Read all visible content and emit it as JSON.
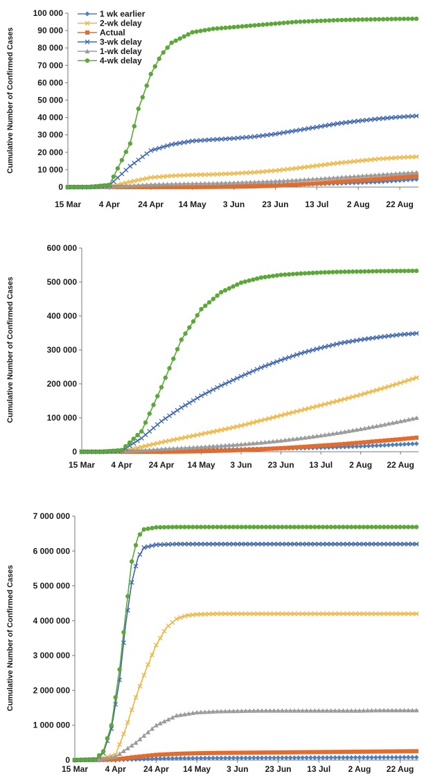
{
  "chart_data": [
    {
      "type": "line",
      "ylabel": "Cumulative Number of Confirmed Cases",
      "ylim": [
        0,
        100000
      ],
      "yticks": [
        0,
        10000,
        20000,
        30000,
        40000,
        50000,
        60000,
        70000,
        80000,
        90000,
        100000
      ],
      "ytick_labels": [
        "0",
        "10 000",
        "20 000",
        "30 000",
        "40 000",
        "50 000",
        "60 000",
        "70 000",
        "80 000",
        "90 000",
        "100 000"
      ],
      "x_tick_labels": [
        "15 Mar",
        "4 Apr",
        "24 Apr",
        "14 May",
        "3 Jun",
        "23 Jun",
        "13 Jul",
        "2 Aug",
        "22 Aug"
      ],
      "legend_placement": "top-left",
      "series": [
        {
          "name": "1 wk earlier",
          "color": "#4a7fc1",
          "marker": "diamond",
          "x": [
            "15 Mar",
            "25 Mar",
            "4 Apr",
            "14 Apr",
            "24 Apr",
            "4 May",
            "14 May",
            "24 May",
            "3 Jun",
            "13 Jun",
            "23 Jun",
            "3 Jul",
            "13 Jul",
            "23 Jul",
            "2 Aug",
            "12 Aug",
            "22 Aug",
            "31 Aug"
          ],
          "values": [
            0,
            0,
            50,
            300,
            600,
            800,
            900,
            1000,
            1100,
            1200,
            1300,
            1500,
            1800,
            2100,
            2500,
            3000,
            3800,
            4500
          ]
        },
        {
          "name": "2-wk delay",
          "color": "#f0b43c",
          "marker": "x",
          "x": [
            "15 Mar",
            "25 Mar",
            "4 Apr",
            "14 Apr",
            "24 Apr",
            "4 May",
            "14 May",
            "24 May",
            "3 Jun",
            "13 Jun",
            "23 Jun",
            "3 Jul",
            "13 Jul",
            "23 Jul",
            "2 Aug",
            "12 Aug",
            "22 Aug",
            "31 Aug"
          ],
          "values": [
            0,
            0,
            300,
            3000,
            5500,
            6500,
            7000,
            7300,
            7800,
            8500,
            9500,
            10800,
            12300,
            13800,
            15000,
            16200,
            17000,
            17500
          ]
        },
        {
          "name": "Actual",
          "color": "#e36c2c",
          "marker": "square",
          "x": [
            "15 Mar",
            "25 Mar",
            "4 Apr",
            "14 Apr",
            "24 Apr",
            "4 May",
            "14 May",
            "24 May",
            "3 Jun",
            "13 Jun",
            "23 Jun",
            "3 Jul",
            "13 Jul",
            "23 Jul",
            "2 Aug",
            "12 Aug",
            "22 Aug",
            "31 Aug"
          ],
          "values": [
            0,
            0,
            0,
            0,
            0,
            0,
            0,
            100,
            200,
            400,
            800,
            1400,
            2100,
            3000,
            3800,
            4600,
            5500,
            6200
          ]
        },
        {
          "name": "3-wk delay",
          "color": "#3a64b0",
          "marker": "x",
          "x": [
            "15 Mar",
            "25 Mar",
            "4 Apr",
            "14 Apr",
            "24 Apr",
            "4 May",
            "14 May",
            "24 May",
            "3 Jun",
            "13 Jun",
            "23 Jun",
            "3 Jul",
            "13 Jul",
            "23 Jul",
            "2 Aug",
            "12 Aug",
            "22 Aug",
            "31 Aug"
          ],
          "values": [
            0,
            0,
            1000,
            12000,
            21000,
            24500,
            26500,
            27300,
            28000,
            29000,
            30500,
            32500,
            34500,
            36500,
            38000,
            39300,
            40300,
            41000
          ]
        },
        {
          "name": "1-wk delay",
          "color": "#9b9b9b",
          "marker": "triangle",
          "x": [
            "15 Mar",
            "25 Mar",
            "4 Apr",
            "14 Apr",
            "24 Apr",
            "4 May",
            "14 May",
            "24 May",
            "3 Jun",
            "13 Jun",
            "23 Jun",
            "3 Jul",
            "13 Jul",
            "23 Jul",
            "2 Aug",
            "12 Aug",
            "22 Aug",
            "31 Aug"
          ],
          "values": [
            0,
            0,
            100,
            900,
            1500,
            1800,
            2000,
            2200,
            2500,
            2900,
            3400,
            4000,
            4700,
            5500,
            6300,
            7100,
            7900,
            8500
          ]
        },
        {
          "name": "4-wk delay",
          "color": "#5aa835",
          "marker": "circle",
          "x": [
            "15 Mar",
            "25 Mar",
            "4 Apr",
            "14 Apr",
            "18 Apr",
            "24 Apr",
            "29 Apr",
            "4 May",
            "14 May",
            "24 May",
            "3 Jun",
            "13 Jun",
            "23 Jun",
            "3 Jul",
            "13 Jul",
            "23 Jul",
            "2 Aug",
            "12 Aug",
            "22 Aug",
            "31 Aug"
          ],
          "values": [
            0,
            0,
            1200,
            25000,
            45000,
            65000,
            76000,
            83000,
            89000,
            91000,
            92000,
            93000,
            94000,
            95000,
            95500,
            96000,
            96300,
            96500,
            96700,
            96800
          ]
        }
      ]
    },
    {
      "type": "line",
      "ylabel": "Cumulative Number of Confirmed Cases",
      "ylim": [
        0,
        600000
      ],
      "yticks": [
        0,
        100000,
        200000,
        300000,
        400000,
        500000,
        600000
      ],
      "ytick_labels": [
        "0",
        "100 000",
        "200 000",
        "300 000",
        "400 000",
        "500 000",
        "600 000"
      ],
      "x_tick_labels": [
        "15 Mar",
        "4 Apr",
        "24 Apr",
        "14 May",
        "3 Jun",
        "23 Jun",
        "13 Jul",
        "2 Aug",
        "22 Aug"
      ],
      "series": [
        {
          "name": "1 wk earlier",
          "color": "#4a7fc1",
          "marker": "diamond",
          "x": [
            "15 Mar",
            "25 Mar",
            "4 Apr",
            "14 Apr",
            "24 Apr",
            "4 May",
            "14 May",
            "24 May",
            "3 Jun",
            "13 Jun",
            "23 Jun",
            "3 Jul",
            "13 Jul",
            "23 Jul",
            "2 Aug",
            "12 Aug",
            "22 Aug",
            "31 Aug"
          ],
          "values": [
            0,
            0,
            500,
            2000,
            3500,
            4500,
            5500,
            6500,
            7500,
            8500,
            9500,
            10500,
            12000,
            14000,
            16000,
            18500,
            21500,
            24000
          ]
        },
        {
          "name": "2-wk delay",
          "color": "#f0b43c",
          "marker": "x",
          "x": [
            "15 Mar",
            "25 Mar",
            "4 Apr",
            "14 Apr",
            "24 Apr",
            "4 May",
            "14 May",
            "24 May",
            "3 Jun",
            "13 Jun",
            "23 Jun",
            "3 Jul",
            "13 Jul",
            "23 Jul",
            "2 Aug",
            "12 Aug",
            "22 Aug",
            "31 Aug"
          ],
          "values": [
            0,
            0,
            2000,
            14000,
            28000,
            40000,
            52000,
            64000,
            77000,
            92000,
            107000,
            122000,
            137000,
            152000,
            168000,
            185000,
            203000,
            220000
          ]
        },
        {
          "name": "Actual",
          "color": "#e36c2c",
          "marker": "square",
          "x": [
            "15 Mar",
            "25 Mar",
            "4 Apr",
            "14 Apr",
            "24 Apr",
            "4 May",
            "14 May",
            "24 May",
            "3 Jun",
            "13 Jun",
            "23 Jun",
            "3 Jul",
            "13 Jul",
            "23 Jul",
            "2 Aug",
            "12 Aug",
            "22 Aug",
            "31 Aug"
          ],
          "values": [
            0,
            0,
            0,
            0,
            100,
            500,
            1500,
            3000,
            5000,
            7500,
            10500,
            14000,
            18000,
            22000,
            27000,
            32000,
            37000,
            42000
          ]
        },
        {
          "name": "3-wk delay",
          "color": "#3a64b0",
          "marker": "x",
          "x": [
            "15 Mar",
            "25 Mar",
            "4 Apr",
            "14 Apr",
            "24 Apr",
            "4 May",
            "14 May",
            "24 May",
            "3 Jun",
            "13 Jun",
            "23 Jun",
            "3 Jul",
            "13 Jul",
            "23 Jul",
            "2 Aug",
            "12 Aug",
            "22 Aug",
            "31 Aug"
          ],
          "values": [
            0,
            0,
            3000,
            40000,
            90000,
            130000,
            165000,
            195000,
            222000,
            248000,
            270000,
            290000,
            306000,
            320000,
            330000,
            338000,
            345000,
            349000
          ]
        },
        {
          "name": "1-wk delay",
          "color": "#9b9b9b",
          "marker": "triangle",
          "x": [
            "15 Mar",
            "25 Mar",
            "4 Apr",
            "14 Apr",
            "24 Apr",
            "4 May",
            "14 May",
            "24 May",
            "3 Jun",
            "13 Jun",
            "23 Jun",
            "3 Jul",
            "13 Jul",
            "23 Jul",
            "2 Aug",
            "12 Aug",
            "22 Aug",
            "31 Aug"
          ],
          "values": [
            0,
            0,
            1000,
            4000,
            8000,
            11000,
            14000,
            18000,
            22000,
            27000,
            33000,
            40000,
            48000,
            57000,
            67000,
            78000,
            90000,
            101000
          ]
        },
        {
          "name": "4-wk delay",
          "color": "#5aa835",
          "marker": "circle",
          "x": [
            "15 Mar",
            "25 Mar",
            "4 Apr",
            "14 Apr",
            "24 Apr",
            "4 May",
            "14 May",
            "24 May",
            "3 Jun",
            "13 Jun",
            "23 Jun",
            "3 Jul",
            "13 Jul",
            "23 Jul",
            "2 Aug",
            "12 Aug",
            "22 Aug",
            "31 Aug"
          ],
          "values": [
            0,
            0,
            5000,
            60000,
            190000,
            330000,
            420000,
            470000,
            498000,
            513000,
            521000,
            525000,
            528000,
            530000,
            531000,
            532000,
            532500,
            533000
          ]
        }
      ]
    },
    {
      "type": "line",
      "ylabel": "Cumulative Number of Confirmed Cases",
      "ylim": [
        0,
        7000000
      ],
      "yticks": [
        0,
        1000000,
        2000000,
        3000000,
        4000000,
        5000000,
        6000000,
        7000000
      ],
      "ytick_labels": [
        "0",
        "1 000 000",
        "2 000 000",
        "3 000 000",
        "4 000 000",
        "5 000 000",
        "6 000 000",
        "7 000 000"
      ],
      "x_tick_labels": [
        "15 Mar",
        "4 Apr",
        "24 Apr",
        "14 May",
        "3 Jun",
        "23 Jun",
        "13 Jul",
        "2 Aug",
        "22 Aug"
      ],
      "series": [
        {
          "name": "1 wk earlier",
          "color": "#4a7fc1",
          "marker": "diamond",
          "x": [
            "15 Mar",
            "25 Mar",
            "4 Apr",
            "14 Apr",
            "24 Apr",
            "4 May",
            "14 May",
            "24 May",
            "3 Jun",
            "13 Jun",
            "23 Jun",
            "3 Jul",
            "13 Jul",
            "23 Jul",
            "2 Aug",
            "12 Aug",
            "22 Aug",
            "31 Aug"
          ],
          "values": [
            0,
            0,
            5000,
            20000,
            40000,
            50000,
            55000,
            60000,
            62000,
            64000,
            66000,
            68000,
            70000,
            72000,
            74000,
            76000,
            78000,
            80000
          ]
        },
        {
          "name": "2-wk delay",
          "color": "#f0b43c",
          "marker": "x",
          "x": [
            "15 Mar",
            "25 Mar",
            "4 Apr",
            "9 Apr",
            "14 Apr",
            "19 Apr",
            "24 Apr",
            "29 Apr",
            "4 May",
            "9 May",
            "14 May",
            "24 May",
            "3 Jun",
            "13 Jun",
            "23 Jun",
            "3 Jul",
            "13 Jul",
            "23 Jul",
            "2 Aug",
            "12 Aug",
            "22 Aug",
            "31 Aug"
          ],
          "values": [
            0,
            0,
            150000,
            900000,
            1800000,
            2600000,
            3300000,
            3800000,
            4050000,
            4150000,
            4180000,
            4200000,
            4200000,
            4200000,
            4200000,
            4200000,
            4200000,
            4200000,
            4200000,
            4200000,
            4200000,
            4200000
          ]
        },
        {
          "name": "Actual",
          "color": "#e36c2c",
          "marker": "square",
          "x": [
            "15 Mar",
            "25 Mar",
            "4 Apr",
            "14 Apr",
            "24 Apr",
            "4 May",
            "14 May",
            "24 May",
            "3 Jun",
            "13 Jun",
            "23 Jun",
            "3 Jul",
            "13 Jul",
            "23 Jul",
            "2 Aug",
            "12 Aug",
            "22 Aug",
            "31 Aug"
          ],
          "values": [
            0,
            0,
            20000,
            90000,
            150000,
            180000,
            195000,
            205000,
            210000,
            215000,
            220000,
            225000,
            230000,
            235000,
            240000,
            245000,
            250000,
            255000
          ]
        },
        {
          "name": "3-wk delay",
          "color": "#3a64b0",
          "marker": "x",
          "x": [
            "15 Mar",
            "25 Mar",
            "29 Mar",
            "2 Apr",
            "6 Apr",
            "9 Apr",
            "12 Apr",
            "15 Apr",
            "18 Apr",
            "24 Apr",
            "4 May",
            "14 May",
            "24 May",
            "3 Jun",
            "13 Jun",
            "23 Jun",
            "3 Jul",
            "13 Jul",
            "23 Jul",
            "2 Aug",
            "12 Aug",
            "22 Aug",
            "31 Aug"
          ],
          "values": [
            0,
            20000,
            200000,
            900000,
            2300000,
            3900000,
            5100000,
            5800000,
            6100000,
            6180000,
            6200000,
            6200000,
            6200000,
            6200000,
            6200000,
            6200000,
            6200000,
            6200000,
            6200000,
            6200000,
            6200000,
            6200000,
            6200000
          ]
        },
        {
          "name": "1-wk delay",
          "color": "#9b9b9b",
          "marker": "triangle",
          "x": [
            "15 Mar",
            "25 Mar",
            "4 Apr",
            "14 Apr",
            "24 Apr",
            "4 May",
            "14 May",
            "24 May",
            "3 Jun",
            "13 Jun",
            "23 Jun",
            "3 Jul",
            "13 Jul",
            "23 Jul",
            "2 Aug",
            "12 Aug",
            "22 Aug",
            "31 Aug"
          ],
          "values": [
            0,
            0,
            100000,
            500000,
            1000000,
            1280000,
            1370000,
            1400000,
            1410000,
            1420000,
            1420000,
            1420000,
            1420000,
            1420000,
            1420000,
            1430000,
            1430000,
            1430000
          ]
        },
        {
          "name": "4-wk delay",
          "color": "#5aa835",
          "marker": "circle",
          "x": [
            "15 Mar",
            "25 Mar",
            "29 Mar",
            "2 Apr",
            "6 Apr",
            "9 Apr",
            "12 Apr",
            "15 Apr",
            "18 Apr",
            "24 Apr",
            "4 May",
            "14 May",
            "24 May",
            "3 Jun",
            "13 Jun",
            "23 Jun",
            "3 Jul",
            "13 Jul",
            "23 Jul",
            "2 Aug",
            "12 Aug",
            "22 Aug",
            "31 Aug"
          ],
          "values": [
            0,
            20000,
            250000,
            1000000,
            2600000,
            4200000,
            5700000,
            6400000,
            6620000,
            6680000,
            6690000,
            6690000,
            6690000,
            6690000,
            6690000,
            6690000,
            6690000,
            6690000,
            6690000,
            6690000,
            6690000,
            6690000,
            6690000
          ]
        }
      ]
    }
  ]
}
